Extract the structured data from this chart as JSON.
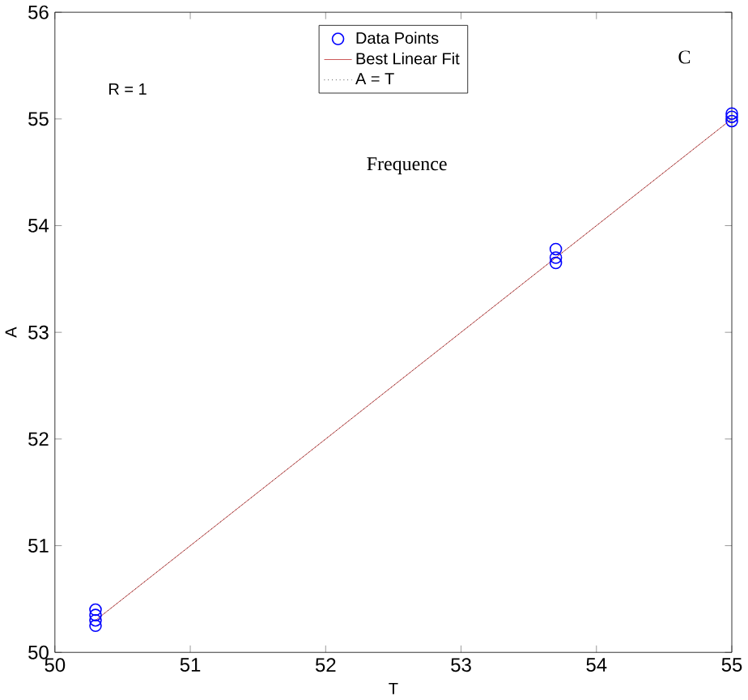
{
  "chart_data": {
    "type": "scatter",
    "xlabel": "T",
    "ylabel": "A",
    "annotations": [
      "R = 1",
      "C",
      "Frequence"
    ],
    "series": [
      {
        "name": "Data Points",
        "color": "#0000ff",
        "marker": "circle",
        "x": [
          50.3,
          50.3,
          50.3,
          50.3,
          53.7,
          53.7,
          53.7,
          55.0,
          55.0,
          55.0
        ],
        "values": [
          50.25,
          50.3,
          50.35,
          50.4,
          53.65,
          53.7,
          53.78,
          54.98,
          55.02,
          55.05
        ]
      },
      {
        "name": "Best Linear Fit",
        "type": "line",
        "color": "#c03030",
        "line_style": "solid",
        "marker": "none",
        "x": [
          50.3,
          55.0
        ],
        "values": [
          50.3,
          55.0
        ]
      },
      {
        "name": "A = T",
        "type": "line",
        "color": "#000000",
        "line_style": "dotted",
        "marker": "none",
        "x": [
          50.3,
          55.0
        ],
        "values": [
          50.3,
          55.0
        ]
      }
    ],
    "xlim": [
      50,
      55
    ],
    "ylim": [
      50,
      56
    ],
    "xticks": [
      50,
      51,
      52,
      53,
      54,
      55
    ],
    "yticks": [
      50,
      51,
      52,
      53,
      54,
      55,
      56
    ],
    "grid": false,
    "legend": "top"
  }
}
